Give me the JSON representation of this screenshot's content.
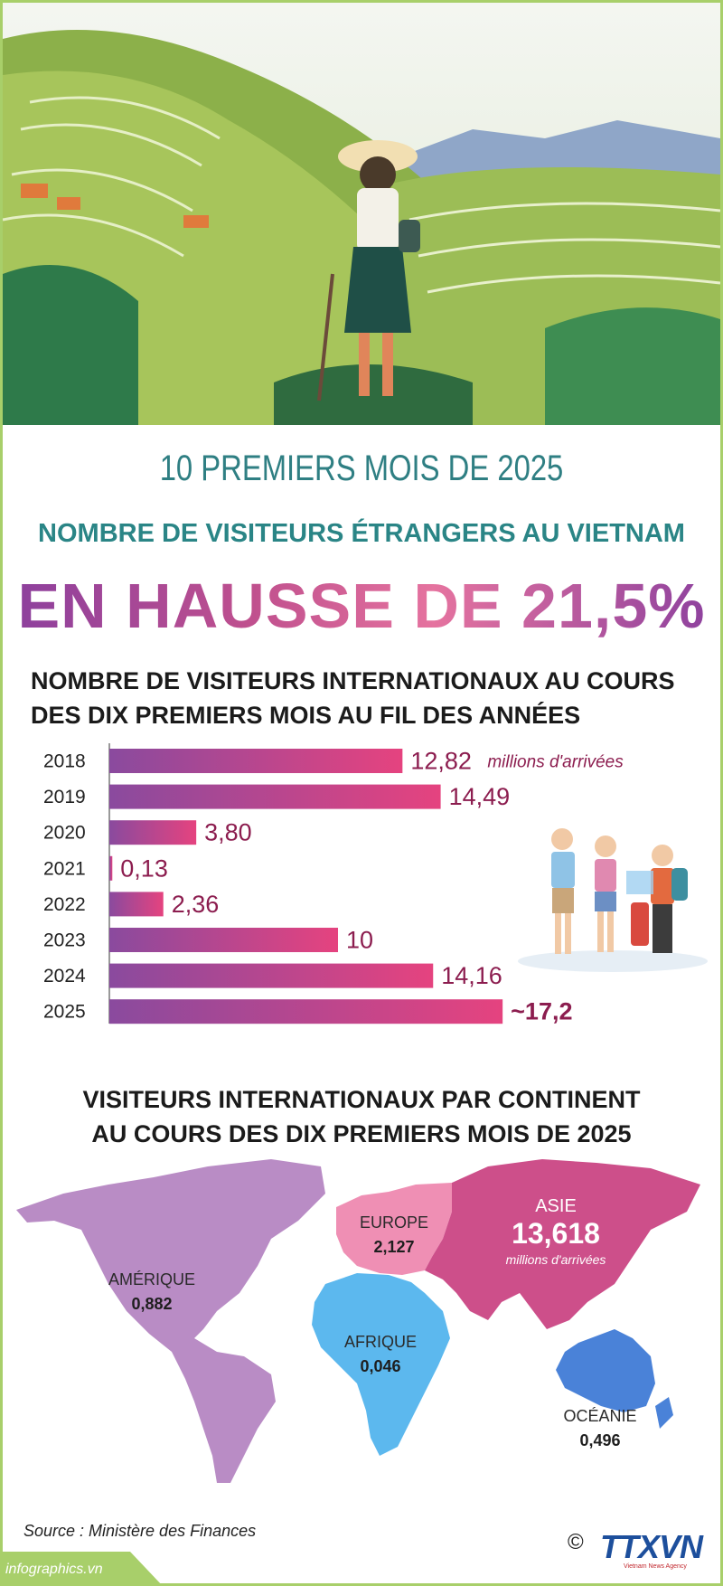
{
  "header": {
    "period": "10 PREMIERS MOIS DE 2025",
    "subtitle": "NOMBRE DE VISITEURS ÉTRANGERS AU VIETNAM",
    "headline": "EN HAUSSE DE 21,5%"
  },
  "chart_data": [
    {
      "type": "bar",
      "orientation": "horizontal",
      "title": "NOMBRE DE VISITEURS INTERNATIONAUX AU COURS DES DIX PREMIERS MOIS AU FIL DES ANNÉES",
      "title_lines": [
        "NOMBRE DE VISITEURS INTERNATIONAUX AU COURS",
        "DES DIX PREMIERS MOIS AU FIL DES ANNÉES"
      ],
      "unit": "millions d'arrivées",
      "categories": [
        "2018",
        "2019",
        "2020",
        "2021",
        "2022",
        "2023",
        "2024",
        "2025"
      ],
      "values": [
        12.82,
        14.49,
        3.8,
        0.13,
        2.36,
        10,
        14.16,
        17.2
      ],
      "labels": [
        "12,82",
        "14,49",
        "3,80",
        "0,13",
        "2,36",
        "10",
        "14,16",
        "~17,2"
      ],
      "colors": {
        "start": "#8a4a9e",
        "end": "#e5437f"
      }
    },
    {
      "type": "map",
      "title": "VISITEURS INTERNATIONAUX PAR CONTINENT AU COURS DES DIX PREMIERS MOIS DE 2025",
      "title_lines": [
        "VISITEURS INTERNATIONAUX PAR CONTINENT",
        "AU COURS DES DIX PREMIERS MOIS DE 2025"
      ],
      "unit": "millions d'arrivées",
      "regions": [
        {
          "name": "AMÉRIQUE",
          "value": 0.882,
          "label": "0,882",
          "color": "#b98cc5"
        },
        {
          "name": "EUROPE",
          "value": 2.127,
          "label": "2,127",
          "color": "#ef8fb4"
        },
        {
          "name": "ASIE",
          "value": 13.618,
          "label": "13,618",
          "color": "#cd4f8a"
        },
        {
          "name": "AFRIQUE",
          "value": 0.046,
          "label": "0,046",
          "color": "#5cb8ee"
        },
        {
          "name": "OCÉANIE",
          "value": 0.496,
          "label": "0,496",
          "color": "#4a82d8"
        }
      ]
    }
  ],
  "footer": {
    "source": "Source : Ministère des Finances",
    "website": "infographics.vn",
    "copyright": "©",
    "logo": "TTXVN",
    "logo_sub": "Vietnam News Agency"
  },
  "colors": {
    "accent": "#a8cf6a",
    "teal": "#2a8586",
    "navy": "#1d4f9c"
  }
}
